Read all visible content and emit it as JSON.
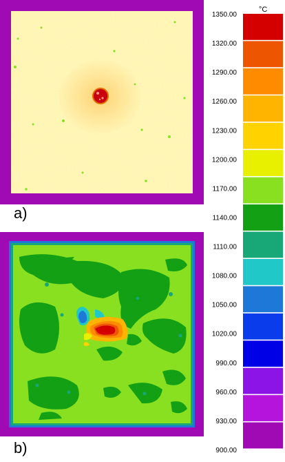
{
  "chart_data": {
    "type": "heatmap",
    "unit": "°C",
    "panels": [
      {
        "label": "a)"
      },
      {
        "label": "b)"
      }
    ],
    "scale": {
      "min": 900.0,
      "max": 1350.0,
      "ticks": [
        "1350.00",
        "1320.00",
        "1290.00",
        "1260.00",
        "1230.00",
        "1200.00",
        "1170.00",
        "1140.00",
        "1110.00",
        "1080.00",
        "1050.00",
        "1020.00",
        "990.00",
        "960.00",
        "930.00",
        "900.00"
      ],
      "colors_top_to_bottom": [
        "#d40000",
        "#ee5500",
        "#ff8c00",
        "#ffb400",
        "#ffd200",
        "#e8f000",
        "#88e020",
        "#14a014",
        "#18a878",
        "#20c8c8",
        "#1e78d8",
        "#0a3cec",
        "#0000e6",
        "#8c14e6",
        "#b414dc",
        "#a00ab4"
      ]
    }
  }
}
